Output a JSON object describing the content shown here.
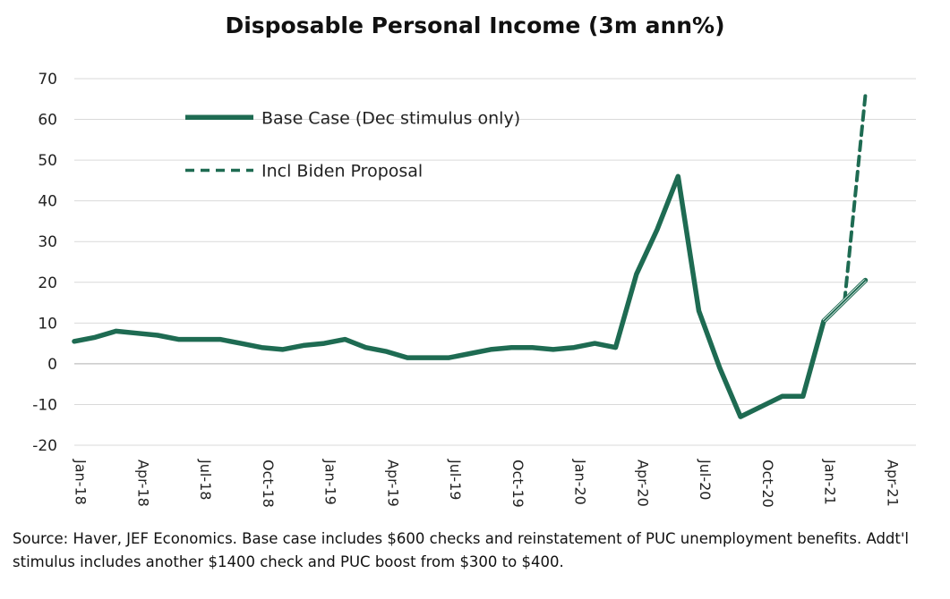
{
  "chart_data": {
    "type": "line",
    "title": "Disposable Personal Income (3m ann%)",
    "ylim": [
      -20,
      70
    ],
    "yticks": [
      -20,
      -10,
      0,
      10,
      20,
      30,
      40,
      50,
      60,
      70
    ],
    "xticks": [
      "Jan-18",
      "Apr-18",
      "Jul-18",
      "Oct-18",
      "Jan-19",
      "Apr-19",
      "Jul-19",
      "Oct-19",
      "Jan-20",
      "Apr-20",
      "Jul-20",
      "Oct-20",
      "Jan-21",
      "Apr-21"
    ],
    "x": [
      "Jan-18",
      "Feb-18",
      "Mar-18",
      "Apr-18",
      "May-18",
      "Jun-18",
      "Jul-18",
      "Aug-18",
      "Sep-18",
      "Oct-18",
      "Nov-18",
      "Dec-18",
      "Jan-19",
      "Feb-19",
      "Mar-19",
      "Apr-19",
      "May-19",
      "Jun-19",
      "Jul-19",
      "Aug-19",
      "Sep-19",
      "Oct-19",
      "Nov-19",
      "Dec-19",
      "Jan-20",
      "Feb-20",
      "Mar-20",
      "Apr-20",
      "May-20",
      "Jun-20",
      "Jul-20",
      "Aug-20",
      "Sep-20",
      "Oct-20",
      "Nov-20",
      "Dec-20",
      "Jan-21",
      "Feb-21",
      "Mar-21"
    ],
    "series": [
      {
        "name": "Base Case (Dec stimulus only)",
        "style": "solid",
        "color": "#1e6b52",
        "values": [
          5.5,
          6.5,
          8,
          7.5,
          7,
          6,
          6,
          6,
          5,
          4,
          3.5,
          4.5,
          5,
          6,
          4,
          3,
          1.5,
          1.5,
          1.5,
          2.5,
          3.5,
          4,
          4,
          3.5,
          4,
          5,
          4,
          22,
          33,
          46,
          13,
          -1,
          -13,
          -10.5,
          -8,
          -8,
          10.5,
          15.5,
          20.5
        ]
      },
      {
        "name": "Incl Biden Proposal",
        "style": "dashed",
        "color": "#1e6b52",
        "values": [
          null,
          null,
          null,
          null,
          null,
          null,
          null,
          null,
          null,
          null,
          null,
          null,
          null,
          null,
          null,
          null,
          null,
          null,
          null,
          null,
          null,
          null,
          null,
          null,
          null,
          null,
          null,
          null,
          null,
          null,
          null,
          null,
          null,
          null,
          null,
          -8,
          10.5,
          15.5,
          66
        ]
      }
    ],
    "legend": [
      "Base Case (Dec stimulus only)",
      "Incl Biden Proposal"
    ],
    "legend_position": "top-left",
    "grid": "horizontal"
  },
  "source_note": "Source: Haver, JEF Economics. Base case includes $600 checks and reinstatement of PUC unemployment benefits. Addt'l stimulus includes another $1400 check and PUC boost from $300 to $400."
}
